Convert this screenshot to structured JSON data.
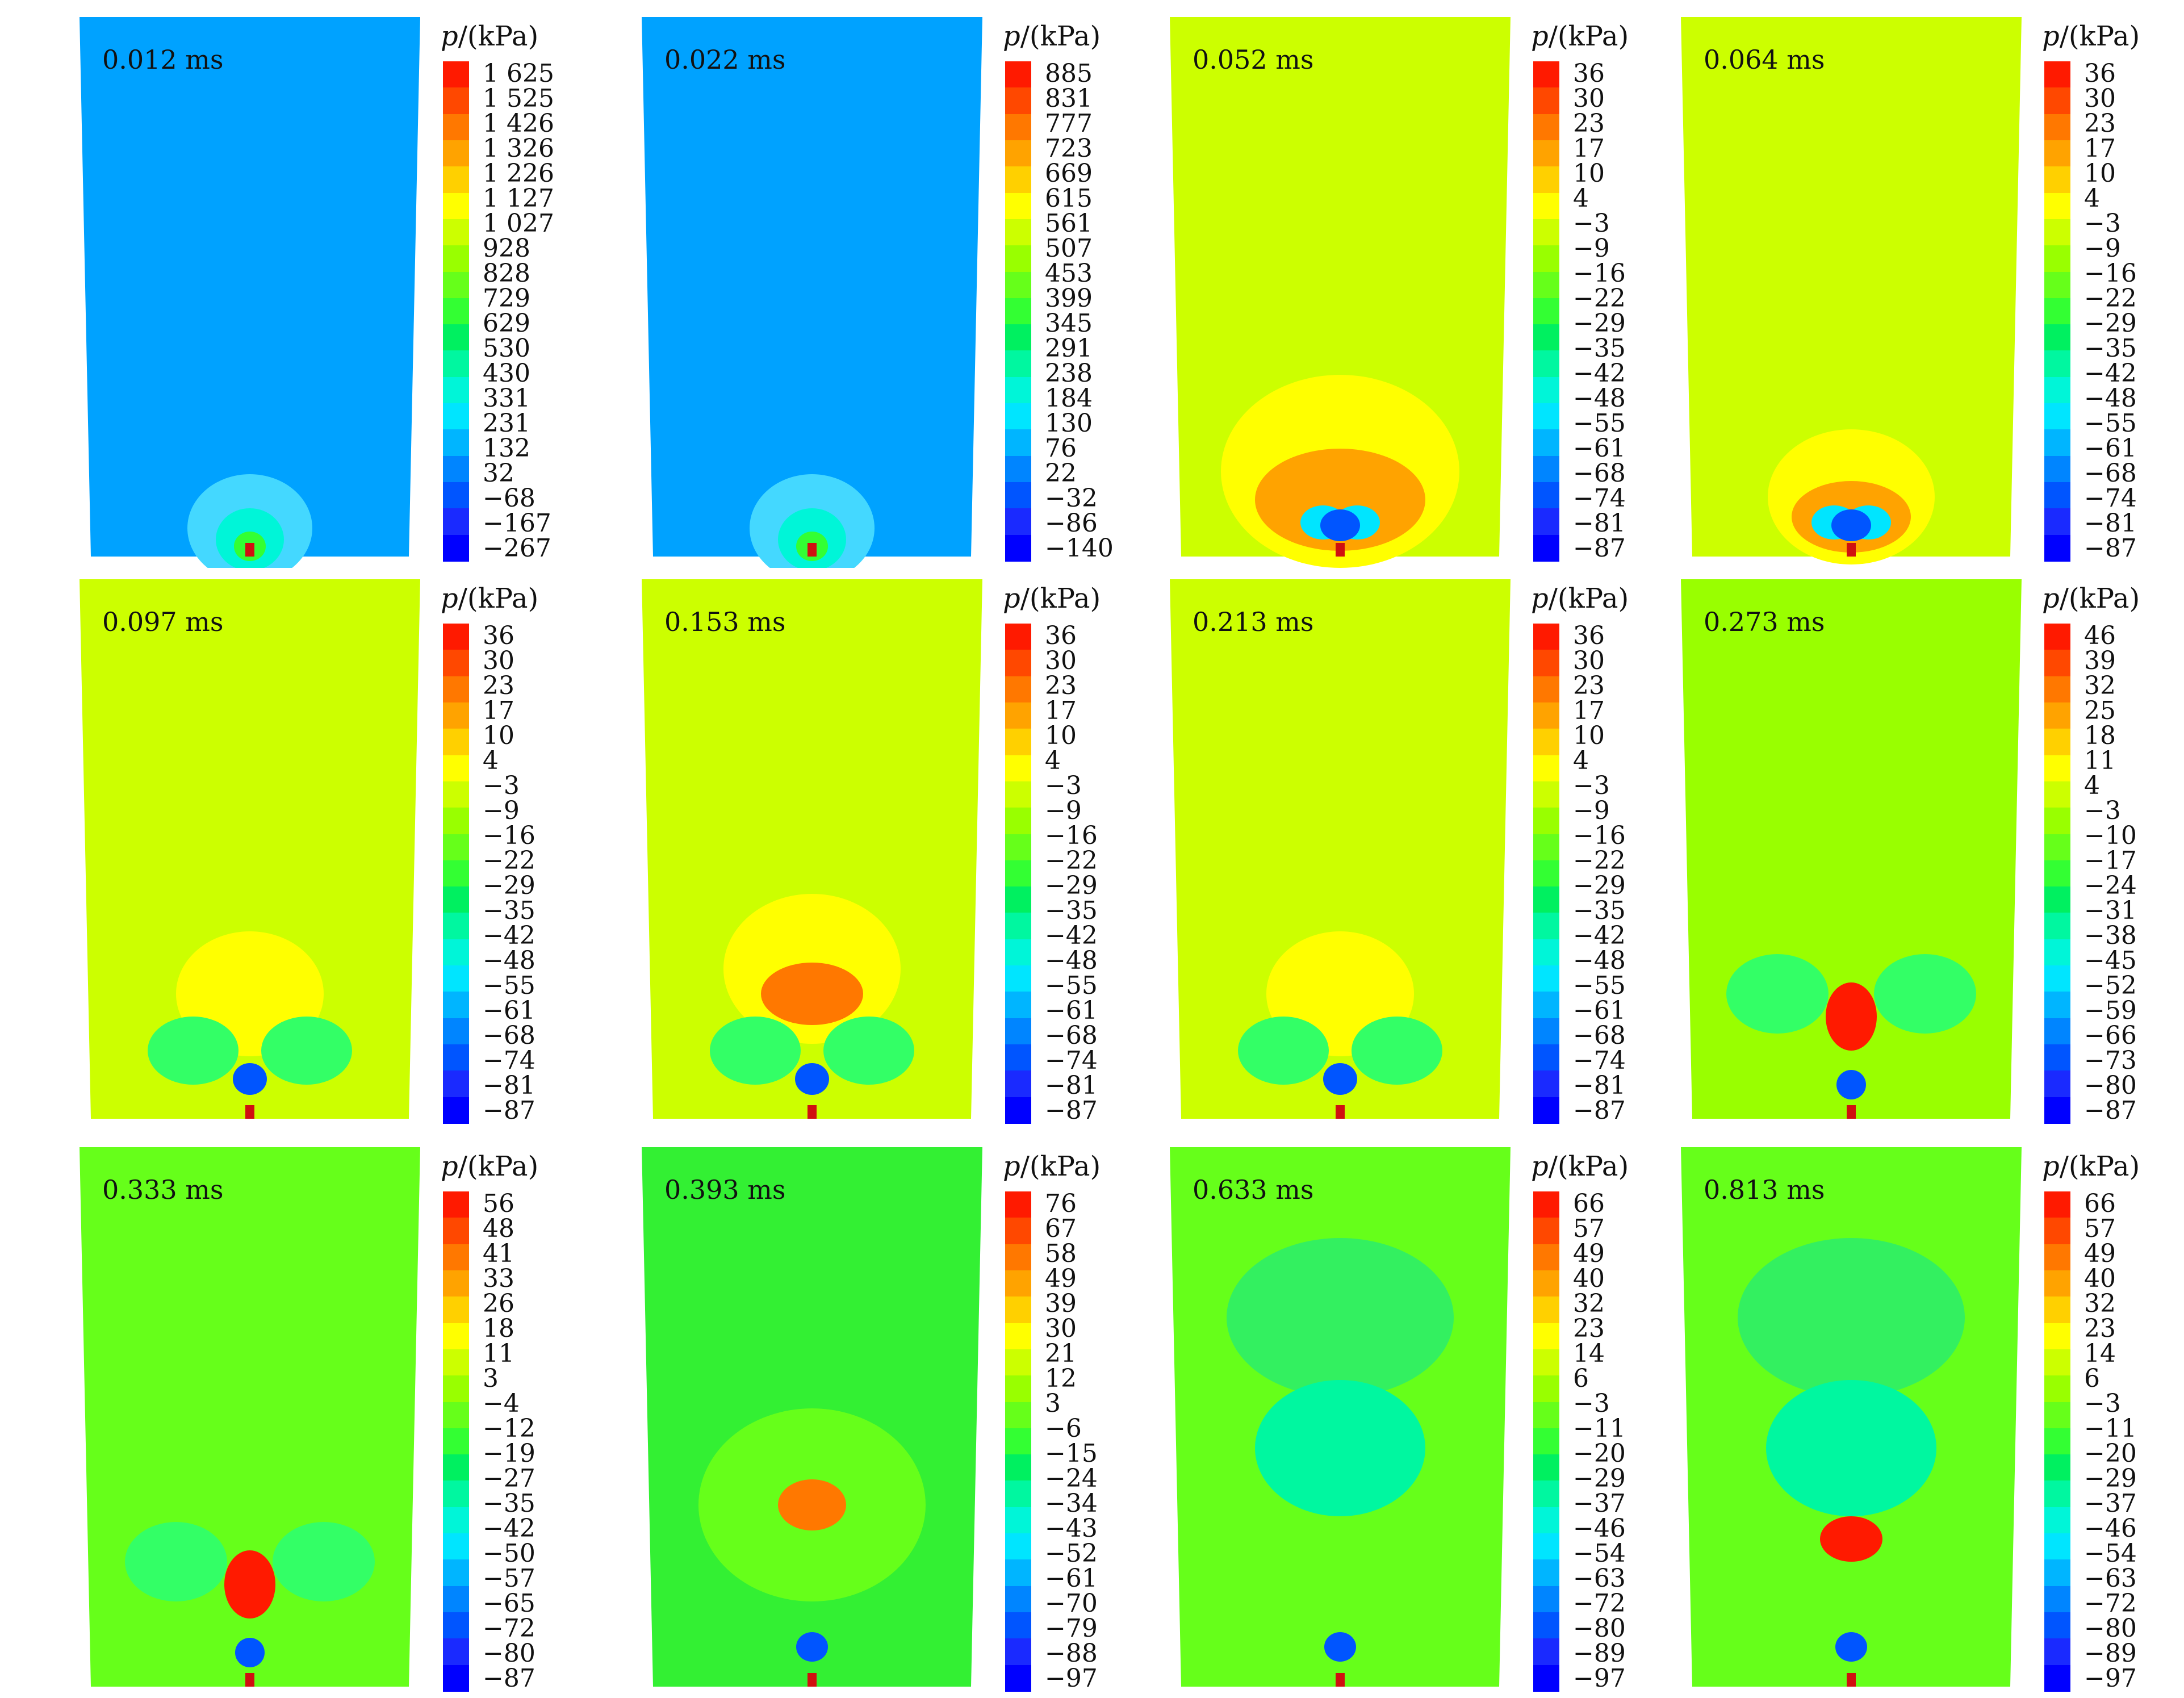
{
  "unit_label": {
    "symbol": "p",
    "unit": "/(kPa)"
  },
  "colormap": [
    "#ff1a00",
    "#ff4800",
    "#ff7800",
    "#ffa300",
    "#ffd000",
    "#ffff00",
    "#ccff00",
    "#99ff00",
    "#66ff1a",
    "#33ff33",
    "#00f060",
    "#00f7a0",
    "#00f5d8",
    "#00e5ff",
    "#00b5ff",
    "#0085ff",
    "#0055ff",
    "#1a2aff",
    "#0000ff"
  ],
  "panels": [
    {
      "time": "0.012 ms",
      "bg": "#00a2ff",
      "ticks": [
        "1 625",
        "1 525",
        "1 426",
        "1 326",
        "1 226",
        "1 127",
        "1 027",
        "928",
        "828",
        "729",
        "629",
        "530",
        "430",
        "331",
        "231",
        "132",
        "32",
        "−68",
        "−167",
        "−267"
      ],
      "features": "small-dome"
    },
    {
      "time": "0.022 ms",
      "bg": "#00a2ff",
      "ticks": [
        "885",
        "831",
        "777",
        "723",
        "669",
        "615",
        "561",
        "507",
        "453",
        "399",
        "345",
        "291",
        "238",
        "184",
        "130",
        "76",
        "22",
        "−32",
        "−86",
        "−140"
      ],
      "features": "small-dome"
    },
    {
      "time": "0.052 ms",
      "bg": "#ccff00",
      "ticks": [
        "36",
        "30",
        "23",
        "17",
        "10",
        "4",
        "−3",
        "−9",
        "−16",
        "−22",
        "−29",
        "−35",
        "−42",
        "−48",
        "−55",
        "−61",
        "−68",
        "−74",
        "−81",
        "−87"
      ],
      "features": "big-dome"
    },
    {
      "time": "0.064 ms",
      "bg": "#ccff00",
      "ticks": [
        "36",
        "30",
        "23",
        "17",
        "10",
        "4",
        "−3",
        "−9",
        "−16",
        "−22",
        "−29",
        "−35",
        "−42",
        "−48",
        "−55",
        "−61",
        "−68",
        "−74",
        "−81",
        "−87"
      ],
      "features": "mid-dome"
    },
    {
      "time": "0.097 ms",
      "bg": "#ccff00",
      "ticks": [
        "36",
        "30",
        "23",
        "17",
        "10",
        "4",
        "−3",
        "−9",
        "−16",
        "−22",
        "−29",
        "−35",
        "−42",
        "−48",
        "−55",
        "−61",
        "−68",
        "−74",
        "−81",
        "−87"
      ],
      "features": "dome-lobes"
    },
    {
      "time": "0.153 ms",
      "bg": "#ccff00",
      "ticks": [
        "36",
        "30",
        "23",
        "17",
        "10",
        "4",
        "−3",
        "−9",
        "−16",
        "−22",
        "−29",
        "−35",
        "−42",
        "−48",
        "−55",
        "−61",
        "−68",
        "−74",
        "−81",
        "−87"
      ],
      "features": "big-dome-lobes"
    },
    {
      "time": "0.213 ms",
      "bg": "#ccff00",
      "ticks": [
        "36",
        "30",
        "23",
        "17",
        "10",
        "4",
        "−3",
        "−9",
        "−16",
        "−22",
        "−29",
        "−35",
        "−42",
        "−48",
        "−55",
        "−61",
        "−68",
        "−74",
        "−81",
        "−87"
      ],
      "features": "dome-lobes"
    },
    {
      "time": "0.273 ms",
      "bg": "#99ff00",
      "ticks": [
        "46",
        "39",
        "32",
        "25",
        "18",
        "11",
        "4",
        "−3",
        "−10",
        "−17",
        "−24",
        "−31",
        "−38",
        "−45",
        "−52",
        "−59",
        "−66",
        "−73",
        "−80",
        "−87"
      ],
      "features": "lobes-red"
    },
    {
      "time": "0.333 ms",
      "bg": "#66ff1a",
      "ticks": [
        "56",
        "48",
        "41",
        "33",
        "26",
        "18",
        "11",
        "3",
        "−4",
        "−12",
        "−19",
        "−27",
        "−35",
        "−42",
        "−50",
        "−57",
        "−65",
        "−72",
        "−80",
        "−87"
      ],
      "features": "lobes-red-high"
    },
    {
      "time": "0.393 ms",
      "bg": "#33f033",
      "ticks": [
        "76",
        "67",
        "58",
        "49",
        "39",
        "30",
        "21",
        "12",
        "3",
        "−6",
        "−15",
        "−24",
        "−34",
        "−43",
        "−52",
        "−61",
        "−70",
        "−79",
        "−88",
        "−97"
      ],
      "features": "red-top"
    },
    {
      "time": "0.633 ms",
      "bg": "#66ff1a",
      "ticks": [
        "66",
        "57",
        "49",
        "40",
        "32",
        "23",
        "14",
        "6",
        "−3",
        "−11",
        "−20",
        "−29",
        "−37",
        "−46",
        "−54",
        "−63",
        "−72",
        "−80",
        "−89",
        "−97"
      ],
      "features": "column"
    },
    {
      "time": "0.813 ms",
      "bg": "#66ff1a",
      "ticks": [
        "66",
        "57",
        "49",
        "40",
        "32",
        "23",
        "14",
        "6",
        "−3",
        "−11",
        "−20",
        "−29",
        "−37",
        "−46",
        "−54",
        "−63",
        "−72",
        "−80",
        "−89",
        "−97"
      ],
      "features": "column-red"
    }
  ]
}
